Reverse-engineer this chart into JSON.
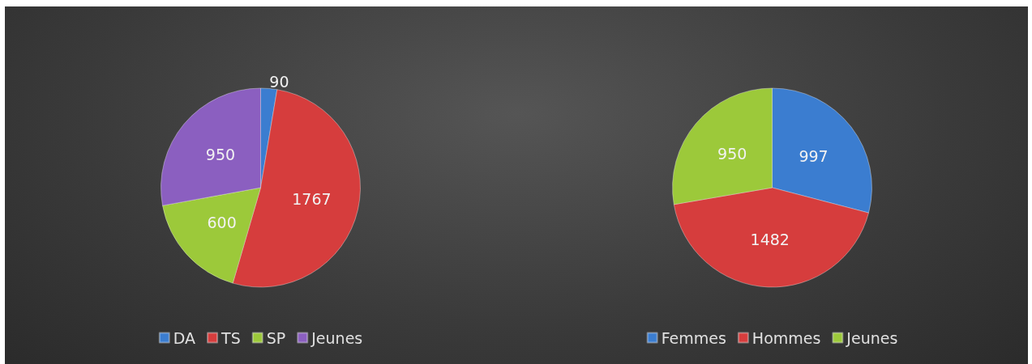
{
  "chart_data": [
    {
      "type": "pie",
      "categories": [
        "DA",
        "TS",
        "SP",
        "Jeunes"
      ],
      "values": [
        90,
        1767,
        600,
        950
      ],
      "colors": [
        "#3b7dd0",
        "#d63d3d",
        "#9cc93a",
        "#8b5fc0"
      ],
      "data_labels": true,
      "legend": "bottom"
    },
    {
      "type": "pie",
      "categories": [
        "Femmes",
        "Hommes",
        "Jeunes"
      ],
      "values": [
        997,
        1482,
        950
      ],
      "colors": [
        "#3b7dd0",
        "#d63d3d",
        "#9cc93a"
      ],
      "data_labels": true,
      "legend": "bottom"
    }
  ]
}
